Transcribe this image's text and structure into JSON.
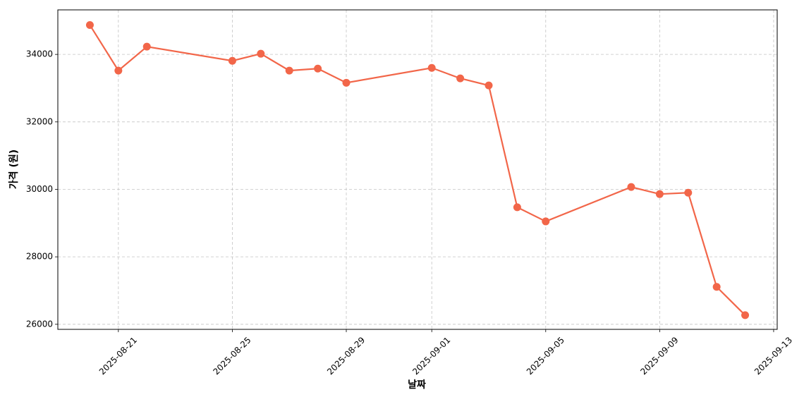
{
  "chart_data": {
    "type": "line",
    "x_label": "날짜",
    "y_label": "가격 (원)",
    "x": [
      "2025-08-20",
      "2025-08-21",
      "2025-08-22",
      "2025-08-25",
      "2025-08-26",
      "2025-08-27",
      "2025-08-28",
      "2025-08-29",
      "2025-09-01",
      "2025-09-02",
      "2025-09-03",
      "2025-09-04",
      "2025-09-05",
      "2025-09-08",
      "2025-09-09",
      "2025-09-10",
      "2025-09-11",
      "2025-09-12"
    ],
    "values": [
      34870,
      33520,
      34230,
      33810,
      34020,
      33520,
      33580,
      33160,
      33600,
      33290,
      33080,
      29470,
      29050,
      30070,
      29860,
      29900,
      27110,
      26270
    ],
    "color": "#f26649",
    "xlim": [
      "2025-08-18T21:00",
      "2025-09-13T03:00"
    ],
    "xticks": [
      "2025-08-21",
      "2025-08-25",
      "2025-08-29",
      "2025-09-01",
      "2025-09-05",
      "2025-09-09",
      "2025-09-13"
    ],
    "ylim": [
      25850,
      35320
    ],
    "yticks": [
      26000,
      28000,
      30000,
      32000,
      34000
    ],
    "grid": true
  }
}
